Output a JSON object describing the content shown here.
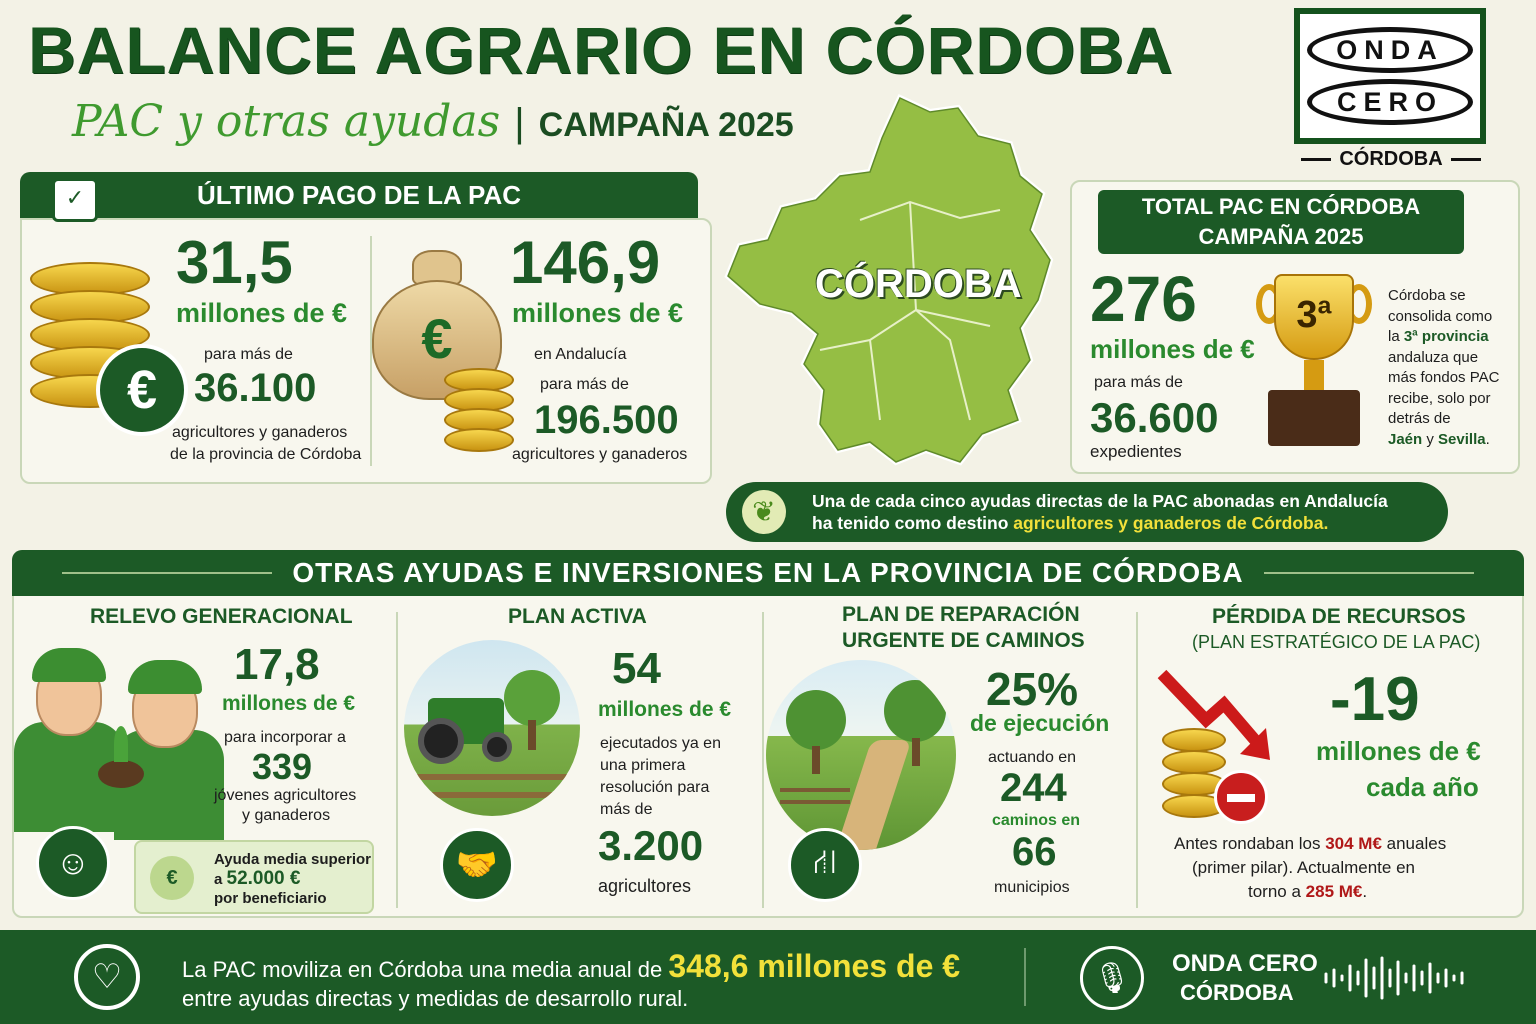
{
  "header": {
    "title": "BALANCE AGRARIO EN CÓRDOBA",
    "subtitle_script": "PAC y otras ayudas",
    "subtitle_separator": "|",
    "subtitle_campaign": "CAMPAÑA 2025"
  },
  "logo": {
    "line1": "ONDA",
    "line2": "CERO",
    "city": "CÓRDOBA"
  },
  "ultimo_pago": {
    "heading": "ÚLTIMO PAGO DE LA PAC",
    "left": {
      "amount": "31,5",
      "unit": "millones de €",
      "pre": "para más de",
      "count": "36.100",
      "post_line1": "agricultores y ganaderos",
      "post_line2": "de la provincia de Córdoba",
      "badge": "€"
    },
    "right": {
      "amount": "146,9",
      "unit": "millones de €",
      "region": "en Andalucía",
      "pre": "para más de",
      "count": "196.500",
      "post": "agricultores y ganaderos",
      "bag_symbol": "€"
    }
  },
  "map": {
    "label": "CÓRDOBA"
  },
  "total_pac": {
    "heading_line1": "TOTAL PAC EN CÓRDOBA",
    "heading_line2": "CAMPAÑA 2025",
    "amount": "276",
    "unit": "millones de €",
    "pre": "para más de",
    "count": "36.600",
    "post": "expedientes",
    "trophy_rank": "3ª",
    "desc_1": "Córdoba se",
    "desc_2": "consolida como",
    "desc_3a": "la ",
    "desc_3b": "3ª provincia",
    "desc_4": "andaluza que",
    "desc_5": "más fondos PAC",
    "desc_6": "recibe, solo por",
    "desc_7": "detrás de",
    "desc_8a": "Jaén",
    "desc_8b": " y ",
    "desc_8c": "Sevilla",
    "desc_8d": "."
  },
  "callout": {
    "line1": "Una de cada cinco ayudas directas de la PAC abonadas en Andalucía",
    "line2_pre": "ha tenido como destino ",
    "line2_highlight": "agricultores y ganaderos de Córdoba."
  },
  "otras": {
    "heading": "OTRAS AYUDAS E INVERSIONES EN LA PROVINCIA DE CÓRDOBA",
    "relevo": {
      "title": "RELEVO GENERACIONAL",
      "amount": "17,8",
      "unit": "millones de €",
      "pre": "para incorporar a",
      "count": "339",
      "post_line1": "jóvenes agricultores",
      "post_line2": "y ganaderos",
      "box_line1": "Ayuda media superior",
      "box_line2_pre": "a ",
      "box_line2_value": "52.000 €",
      "box_line3": "por beneficiario",
      "box_icon": "€"
    },
    "activa": {
      "title": "PLAN ACTIVA",
      "amount": "54",
      "unit": "millones de €",
      "text_1": "ejecutados ya en",
      "text_2": "una primera",
      "text_3": "resolución para",
      "text_4": "más de",
      "count": "3.200",
      "post": "agricultores"
    },
    "caminos": {
      "title_line1": "PLAN DE REPARACIÓN",
      "title_line2": "URGENTE DE CAMINOS",
      "percent": "25%",
      "percent_label": "de ejecución",
      "pre": "actuando en",
      "count": "244",
      "mid": "caminos en",
      "count2": "66",
      "post": "municipios"
    },
    "perdida": {
      "title": "PÉRDIDA DE RECURSOS",
      "subtitle": "(PLAN ESTRATÉGICO DE LA PAC)",
      "amount": "-19",
      "unit": "millones de €",
      "period": "cada año",
      "t1_pre": "Antes rondaban los ",
      "t1_value": "304 M€",
      "t1_post": " anuales",
      "t2": "(primer pilar). Actualmente en",
      "t3_pre": "torno a ",
      "t3_value": "285 M€",
      "t3_post": "."
    }
  },
  "footer": {
    "line1_pre": "La PAC moviliza en Córdoba una media anual de ",
    "line1_value": "348,6 millones de €",
    "line2": "entre ayudas directas y medidas de desarrollo rural.",
    "brand_line1": "ONDA CERO",
    "brand_line2": "CÓRDOBA"
  }
}
